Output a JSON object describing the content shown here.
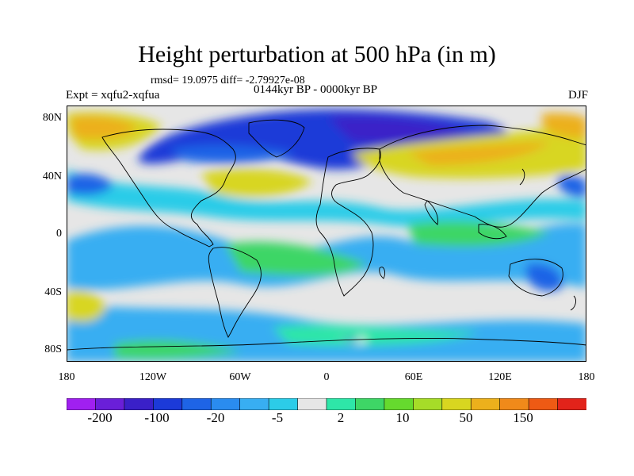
{
  "title": "Height perturbation at 500 hPa (in m)",
  "stats": "rmsd= 19.0975 diff= -2.79927e-08",
  "experiment": "Expt = xqfu2-xqfua",
  "period": "0144kyr BP - 0000kyr BP",
  "season": "DJF",
  "map": {
    "lat_labels": [
      "80N",
      "40N",
      "0",
      "40S",
      "80S"
    ],
    "lon_labels": [
      "180",
      "120W",
      "60W",
      "0",
      "60E",
      "120E",
      "180"
    ]
  },
  "colorbar": {
    "labels": [
      "-200",
      "-100",
      "-20",
      "-5",
      "2",
      "10",
      "50",
      "150"
    ],
    "colors": [
      "#a020f0",
      "#6a1fd8",
      "#3a20c8",
      "#1c3ad8",
      "#1e64e6",
      "#2a8cef",
      "#38aef2",
      "#2ccce8",
      "#e6e6e6",
      "#2ee6a8",
      "#3ed666",
      "#66da2e",
      "#a6dc28",
      "#d8d620",
      "#ecb01c",
      "#f08a1a",
      "#ee5a14",
      "#e2231a"
    ]
  },
  "palette": {
    "land_outline": "#000000",
    "neutral": "#e6e6e6"
  }
}
